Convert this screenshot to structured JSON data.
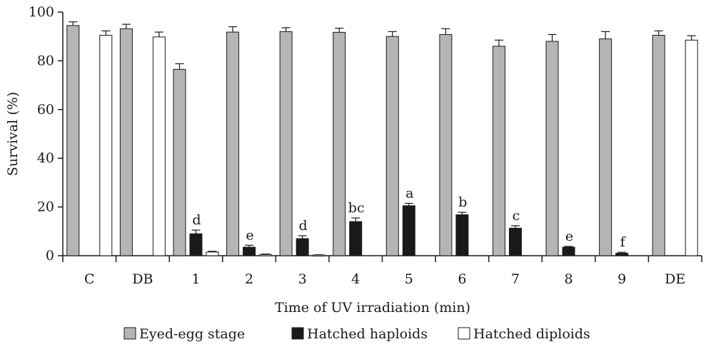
{
  "chart_data": {
    "type": "bar",
    "xlabel": "Time of UV irradiation (min)",
    "ylabel": "Survival (%)",
    "ylim": [
      0,
      100
    ],
    "yticks": [
      0,
      20,
      40,
      60,
      80,
      100
    ],
    "categories": [
      "C",
      "DB",
      "1",
      "2",
      "3",
      "4",
      "5",
      "6",
      "7",
      "8",
      "9",
      "DE"
    ],
    "legend_position": "bottom",
    "grid": false,
    "series": [
      {
        "name": "Eyed-egg stage",
        "color": "#b5b5b5",
        "values": [
          94.5,
          93.2,
          76.5,
          91.8,
          92.0,
          91.7,
          90.0,
          90.8,
          86.0,
          88.0,
          89.0,
          90.5
        ],
        "errors": [
          1.5,
          1.8,
          2.3,
          2.2,
          1.6,
          1.7,
          2.0,
          2.4,
          2.5,
          2.8,
          3.0,
          1.8
        ]
      },
      {
        "name": "Hatched haploids",
        "color": "#1a1a1a",
        "values": [
          0,
          0,
          9.0,
          3.5,
          7.0,
          14.0,
          20.5,
          16.8,
          11.3,
          3.5,
          1.0,
          0
        ],
        "errors": [
          0,
          0,
          1.5,
          0.8,
          1.2,
          1.5,
          1.0,
          1.0,
          1.0,
          0.3,
          0.4,
          0
        ]
      },
      {
        "name": "Hatched diploids",
        "color": "#ffffff",
        "values": [
          90.5,
          89.8,
          1.5,
          0.5,
          0.3,
          0,
          0,
          0,
          0,
          0,
          0,
          88.5
        ],
        "errors": [
          1.8,
          2.0,
          0.3,
          0.2,
          0.1,
          0,
          0,
          0,
          0,
          0,
          0,
          1.8
        ]
      }
    ],
    "annotations": [
      {
        "category": "1",
        "series": "Hatched haploids",
        "text": "d"
      },
      {
        "category": "2",
        "series": "Hatched haploids",
        "text": "e"
      },
      {
        "category": "3",
        "series": "Hatched haploids",
        "text": "d"
      },
      {
        "category": "4",
        "series": "Hatched haploids",
        "text": "bc"
      },
      {
        "category": "5",
        "series": "Hatched haploids",
        "text": "a"
      },
      {
        "category": "6",
        "series": "Hatched haploids",
        "text": "b"
      },
      {
        "category": "7",
        "series": "Hatched haploids",
        "text": "c"
      },
      {
        "category": "8",
        "series": "Hatched haploids",
        "text": "e"
      },
      {
        "category": "9",
        "series": "Hatched haploids",
        "text": "f"
      }
    ]
  }
}
